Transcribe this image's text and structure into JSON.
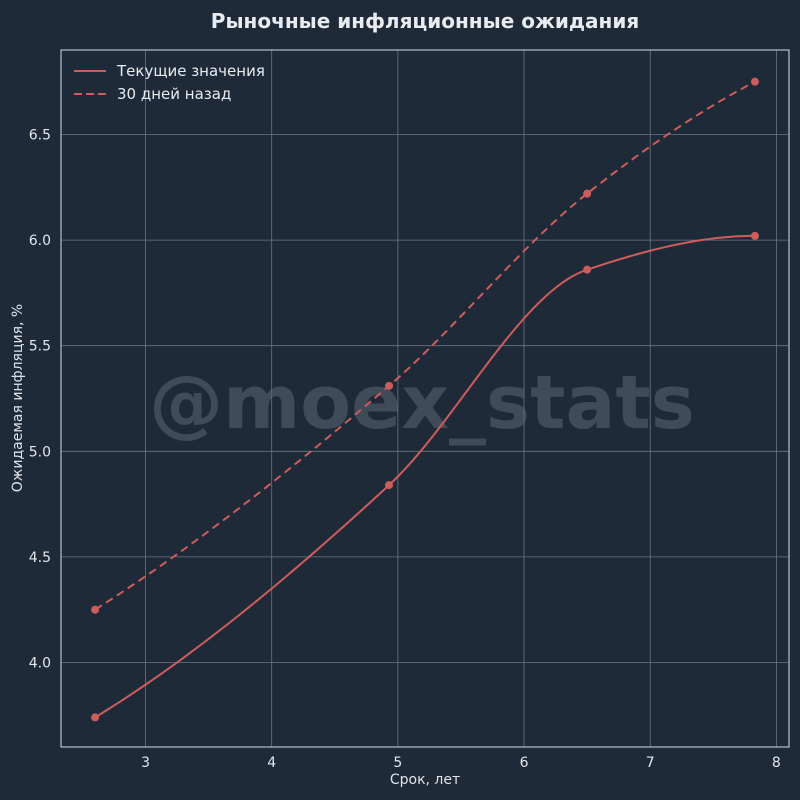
{
  "chart_data": {
    "type": "line",
    "title": "Рыночные инфляционные ожидания",
    "xlabel": "Срок, лет",
    "ylabel": "Ожидаемая инфляция, %",
    "xlim": [
      2.33,
      8.1
    ],
    "ylim": [
      3.6,
      6.9
    ],
    "xticks": [
      3,
      4,
      5,
      6,
      7,
      8
    ],
    "yticks": [
      4.0,
      4.5,
      5.0,
      5.5,
      6.0,
      6.5
    ],
    "grid": true,
    "legend_position": "top-left",
    "watermark": "@moex_stats",
    "series": [
      {
        "name": "Текущие значения",
        "style": "solid",
        "color": "#cd5c5c",
        "x": [
          2.6,
          4.93,
          6.5,
          7.83
        ],
        "y": [
          3.74,
          4.84,
          5.86,
          6.02
        ]
      },
      {
        "name": "30 дней назад",
        "style": "dashed",
        "color": "#cd5c5c",
        "x": [
          2.6,
          4.93,
          6.5,
          7.83
        ],
        "y": [
          4.25,
          5.31,
          6.22,
          6.75
        ]
      }
    ]
  },
  "colors": {
    "background": "#1f2a38",
    "grid": "#6b7582",
    "axis": "#d7dbe0",
    "text": "#e3e7ec"
  }
}
